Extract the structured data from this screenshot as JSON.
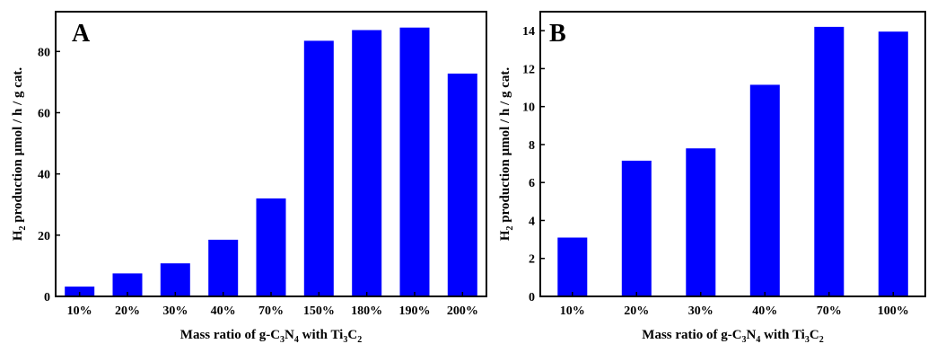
{
  "chart_data": [
    {
      "type": "bar",
      "panel_label": "A",
      "categories": [
        "10%",
        "20%",
        "30%",
        "40%",
        "70%",
        "150%",
        "180%",
        "190%",
        "200%"
      ],
      "values": [
        3.2,
        7.5,
        10.8,
        18.5,
        32.0,
        83.5,
        87.0,
        87.8,
        72.8
      ],
      "ylim": [
        0,
        93
      ],
      "yticks": [
        0,
        20,
        40,
        60,
        80
      ],
      "xlabel": {
        "prefix": "Mass ratio of g-C",
        "sub1": "3",
        "mid1": "N",
        "sub2": "4",
        "mid2": " with Ti",
        "sub3": "3",
        "mid3": "C",
        "sub4": "2"
      },
      "ylabel": {
        "prefix": "H",
        "sub": "2",
        "rest": " production μmol / h / g cat."
      },
      "bar_color": "#0000ff",
      "grid": false
    },
    {
      "type": "bar",
      "panel_label": "B",
      "categories": [
        "10%",
        "20%",
        "30%",
        "40%",
        "70%",
        "100%"
      ],
      "values": [
        3.1,
        7.15,
        7.8,
        11.15,
        14.2,
        13.95
      ],
      "ylim": [
        0,
        15
      ],
      "yticks": [
        0,
        2,
        4,
        6,
        8,
        10,
        12,
        14
      ],
      "xlabel": {
        "prefix": "Mass ratio of g-C",
        "sub1": "3",
        "mid1": "N",
        "sub2": "4",
        "mid2": " with Ti",
        "sub3": "3",
        "mid3": "C",
        "sub4": "2"
      },
      "ylabel": {
        "prefix": "H",
        "sub": "2",
        "rest": " production μmol / h / g cat."
      },
      "bar_color": "#0000ff",
      "grid": false
    }
  ]
}
